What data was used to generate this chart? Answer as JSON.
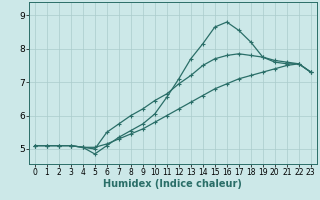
{
  "xlabel": "Humidex (Indice chaleur)",
  "bg_color": "#cce8e8",
  "line_color": "#2a6e68",
  "grid_color": "#aacccc",
  "xlim": [
    -0.5,
    23.5
  ],
  "ylim": [
    4.55,
    9.4
  ],
  "yticks": [
    5,
    6,
    7,
    8,
    9
  ],
  "xticks": [
    0,
    1,
    2,
    3,
    4,
    5,
    6,
    7,
    8,
    9,
    10,
    11,
    12,
    13,
    14,
    15,
    16,
    17,
    18,
    19,
    20,
    21,
    22,
    23
  ],
  "curve_peak_x": [
    0,
    1,
    2,
    3,
    4,
    5,
    6,
    7,
    8,
    9,
    10,
    11,
    12,
    13,
    14,
    15,
    16,
    17,
    18,
    19,
    20,
    21,
    22,
    23
  ],
  "curve_peak_y": [
    5.1,
    5.1,
    5.1,
    5.1,
    5.05,
    4.85,
    5.1,
    5.35,
    5.55,
    5.75,
    6.05,
    6.55,
    7.1,
    7.7,
    8.15,
    8.65,
    8.8,
    8.55,
    8.2,
    7.75,
    7.6,
    7.55,
    7.55,
    7.3
  ],
  "curve_mid_x": [
    0,
    1,
    2,
    3,
    4,
    5,
    6,
    7,
    8,
    9,
    10,
    11,
    12,
    13,
    14,
    15,
    16,
    17,
    18,
    19,
    20,
    21,
    22,
    23
  ],
  "curve_mid_y": [
    5.1,
    5.1,
    5.1,
    5.1,
    5.05,
    5.0,
    5.5,
    5.75,
    6.0,
    6.2,
    6.45,
    6.65,
    6.95,
    7.2,
    7.5,
    7.7,
    7.8,
    7.85,
    7.8,
    7.75,
    7.65,
    7.6,
    7.55,
    7.3
  ],
  "curve_low_x": [
    0,
    1,
    2,
    3,
    4,
    5,
    6,
    7,
    8,
    9,
    10,
    11,
    12,
    13,
    14,
    15,
    16,
    17,
    18,
    19,
    20,
    21,
    22,
    23
  ],
  "curve_low_y": [
    5.1,
    5.1,
    5.1,
    5.1,
    5.05,
    5.05,
    5.15,
    5.3,
    5.45,
    5.6,
    5.8,
    6.0,
    6.2,
    6.4,
    6.6,
    6.8,
    6.95,
    7.1,
    7.2,
    7.3,
    7.4,
    7.5,
    7.55,
    7.3
  ],
  "marker": "+",
  "marker_size": 3,
  "line_width": 0.9,
  "xlabel_fontsize": 7,
  "tick_fontsize": 6.5
}
